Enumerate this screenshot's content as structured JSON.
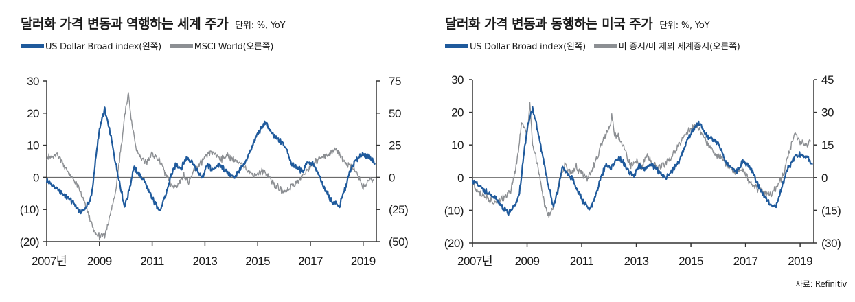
{
  "colors": {
    "usd": "#1f5a9c",
    "other": "#8c8f93",
    "axis": "#333333",
    "zero": "#555555"
  },
  "source": "자료: Refinitiv",
  "chart_data": [
    {
      "type": "line",
      "title": "달러화 가격 변동과 역행하는 세계 주가",
      "unit": "단위: %, YoY",
      "x_ticks": [
        "2007년",
        "2009",
        "2011",
        "2013",
        "2015",
        "2017",
        "2019"
      ],
      "xlim": [
        2007,
        2019.5
      ],
      "left_ylim": [
        -20,
        30
      ],
      "right_ylim": [
        -50,
        75
      ],
      "left_ticks": [
        "30",
        "20",
        "10",
        "0",
        "(10)",
        "(20)"
      ],
      "right_ticks": [
        "75",
        "50",
        "25",
        "0",
        "(25)",
        "(50)"
      ],
      "series": [
        {
          "name": "US Dollar Broad index(왼쪽)",
          "axis": "left",
          "color_key": "usd",
          "points": [
            [
              2007.0,
              -1
            ],
            [
              2007.3,
              -3
            ],
            [
              2007.6,
              -5
            ],
            [
              2007.9,
              -7
            ],
            [
              2008.1,
              -9
            ],
            [
              2008.3,
              -11
            ],
            [
              2008.5,
              -9
            ],
            [
              2008.7,
              -6
            ],
            [
              2008.85,
              5
            ],
            [
              2009.0,
              15
            ],
            [
              2009.2,
              21
            ],
            [
              2009.4,
              14
            ],
            [
              2009.6,
              5
            ],
            [
              2009.8,
              -3
            ],
            [
              2009.95,
              -9
            ],
            [
              2010.1,
              -5
            ],
            [
              2010.3,
              3
            ],
            [
              2010.5,
              1
            ],
            [
              2010.7,
              -1
            ],
            [
              2010.9,
              -5
            ],
            [
              2011.1,
              -8
            ],
            [
              2011.3,
              -10
            ],
            [
              2011.5,
              -6
            ],
            [
              2011.7,
              0
            ],
            [
              2011.9,
              4
            ],
            [
              2012.1,
              3
            ],
            [
              2012.3,
              6
            ],
            [
              2012.5,
              5
            ],
            [
              2012.7,
              2
            ],
            [
              2012.9,
              0
            ],
            [
              2013.1,
              4
            ],
            [
              2013.3,
              2
            ],
            [
              2013.5,
              4
            ],
            [
              2013.7,
              3
            ],
            [
              2013.9,
              1
            ],
            [
              2014.1,
              0
            ],
            [
              2014.3,
              2
            ],
            [
              2014.5,
              4
            ],
            [
              2014.7,
              8
            ],
            [
              2014.9,
              12
            ],
            [
              2015.1,
              15
            ],
            [
              2015.3,
              17
            ],
            [
              2015.5,
              14
            ],
            [
              2015.7,
              12
            ],
            [
              2015.9,
              11
            ],
            [
              2016.1,
              9
            ],
            [
              2016.3,
              4
            ],
            [
              2016.5,
              3
            ],
            [
              2016.7,
              2
            ],
            [
              2016.9,
              5
            ],
            [
              2017.1,
              4
            ],
            [
              2017.3,
              1
            ],
            [
              2017.5,
              -3
            ],
            [
              2017.7,
              -6
            ],
            [
              2017.9,
              -8
            ],
            [
              2018.1,
              -9
            ],
            [
              2018.3,
              -4
            ],
            [
              2018.5,
              2
            ],
            [
              2018.7,
              5
            ],
            [
              2018.9,
              7
            ],
            [
              2019.1,
              7
            ],
            [
              2019.3,
              6
            ],
            [
              2019.45,
              4
            ]
          ]
        },
        {
          "name": "MSCI World(오른쪽)",
          "axis": "right",
          "color_key": "other",
          "points": [
            [
              2007.0,
              16
            ],
            [
              2007.2,
              15
            ],
            [
              2007.4,
              18
            ],
            [
              2007.6,
              12
            ],
            [
              2007.8,
              4
            ],
            [
              2008.0,
              -2
            ],
            [
              2008.2,
              -8
            ],
            [
              2008.4,
              -18
            ],
            [
              2008.6,
              -30
            ],
            [
              2008.8,
              -42
            ],
            [
              2009.0,
              -46
            ],
            [
              2009.2,
              -45
            ],
            [
              2009.4,
              -30
            ],
            [
              2009.6,
              -12
            ],
            [
              2009.8,
              20
            ],
            [
              2010.0,
              55
            ],
            [
              2010.1,
              65
            ],
            [
              2010.2,
              45
            ],
            [
              2010.4,
              22
            ],
            [
              2010.6,
              14
            ],
            [
              2010.8,
              12
            ],
            [
              2011.0,
              18
            ],
            [
              2011.2,
              15
            ],
            [
              2011.4,
              8
            ],
            [
              2011.6,
              -2
            ],
            [
              2011.8,
              -8
            ],
            [
              2012.0,
              -5
            ],
            [
              2012.2,
              2
            ],
            [
              2012.4,
              -4
            ],
            [
              2012.6,
              6
            ],
            [
              2012.8,
              10
            ],
            [
              2013.0,
              15
            ],
            [
              2013.2,
              20
            ],
            [
              2013.4,
              18
            ],
            [
              2013.6,
              14
            ],
            [
              2013.8,
              17
            ],
            [
              2014.0,
              15
            ],
            [
              2014.2,
              12
            ],
            [
              2014.4,
              10
            ],
            [
              2014.6,
              6
            ],
            [
              2014.8,
              2
            ],
            [
              2015.0,
              3
            ],
            [
              2015.2,
              5
            ],
            [
              2015.4,
              2
            ],
            [
              2015.6,
              -5
            ],
            [
              2015.8,
              -8
            ],
            [
              2016.0,
              -12
            ],
            [
              2016.2,
              -8
            ],
            [
              2016.4,
              -5
            ],
            [
              2016.6,
              -2
            ],
            [
              2016.8,
              3
            ],
            [
              2017.0,
              8
            ],
            [
              2017.2,
              12
            ],
            [
              2017.4,
              16
            ],
            [
              2017.6,
              17
            ],
            [
              2017.8,
              19
            ],
            [
              2018.0,
              22
            ],
            [
              2018.2,
              15
            ],
            [
              2018.4,
              10
            ],
            [
              2018.6,
              8
            ],
            [
              2018.8,
              2
            ],
            [
              2019.0,
              -8
            ],
            [
              2019.2,
              -3
            ],
            [
              2019.4,
              -2
            ]
          ]
        }
      ]
    },
    {
      "type": "line",
      "title": "달러화 가격 변동과 동행하는 미국 주가",
      "unit": "단위: %, YoY",
      "x_ticks": [
        "2007년",
        "2009",
        "2011",
        "2013",
        "2015",
        "2017",
        "2019"
      ],
      "xlim": [
        2007,
        2019.5
      ],
      "left_ylim": [
        -20,
        30
      ],
      "right_ylim": [
        -30,
        45
      ],
      "left_ticks": [
        "30",
        "20",
        "10",
        "0",
        "(10)",
        "(20)"
      ],
      "right_ticks": [
        "45",
        "30",
        "15",
        "0",
        "(15)",
        "(30)"
      ],
      "series": [
        {
          "name": "US Dollar Broad index(왼쪽)",
          "axis": "left",
          "color_key": "usd",
          "points": [
            [
              2007.0,
              -1
            ],
            [
              2007.3,
              -3
            ],
            [
              2007.6,
              -5
            ],
            [
              2007.9,
              -7
            ],
            [
              2008.1,
              -9
            ],
            [
              2008.3,
              -11
            ],
            [
              2008.5,
              -9
            ],
            [
              2008.7,
              -6
            ],
            [
              2008.85,
              5
            ],
            [
              2009.0,
              15
            ],
            [
              2009.2,
              21
            ],
            [
              2009.4,
              14
            ],
            [
              2009.6,
              5
            ],
            [
              2009.8,
              -3
            ],
            [
              2009.95,
              -9
            ],
            [
              2010.1,
              -5
            ],
            [
              2010.3,
              3
            ],
            [
              2010.5,
              1
            ],
            [
              2010.7,
              -1
            ],
            [
              2010.9,
              -5
            ],
            [
              2011.1,
              -8
            ],
            [
              2011.3,
              -10
            ],
            [
              2011.5,
              -6
            ],
            [
              2011.7,
              0
            ],
            [
              2011.9,
              4
            ],
            [
              2012.1,
              3
            ],
            [
              2012.3,
              6
            ],
            [
              2012.5,
              5
            ],
            [
              2012.7,
              2
            ],
            [
              2012.9,
              0
            ],
            [
              2013.1,
              4
            ],
            [
              2013.3,
              2
            ],
            [
              2013.5,
              4
            ],
            [
              2013.7,
              3
            ],
            [
              2013.9,
              1
            ],
            [
              2014.1,
              0
            ],
            [
              2014.3,
              2
            ],
            [
              2014.5,
              4
            ],
            [
              2014.7,
              8
            ],
            [
              2014.9,
              12
            ],
            [
              2015.1,
              15
            ],
            [
              2015.3,
              17
            ],
            [
              2015.5,
              14
            ],
            [
              2015.7,
              12
            ],
            [
              2015.9,
              11
            ],
            [
              2016.1,
              9
            ],
            [
              2016.3,
              4
            ],
            [
              2016.5,
              3
            ],
            [
              2016.7,
              2
            ],
            [
              2016.9,
              5
            ],
            [
              2017.1,
              4
            ],
            [
              2017.3,
              1
            ],
            [
              2017.5,
              -3
            ],
            [
              2017.7,
              -6
            ],
            [
              2017.9,
              -8
            ],
            [
              2018.1,
              -9
            ],
            [
              2018.3,
              -4
            ],
            [
              2018.5,
              2
            ],
            [
              2018.7,
              5
            ],
            [
              2018.9,
              7
            ],
            [
              2019.1,
              7
            ],
            [
              2019.3,
              6
            ],
            [
              2019.45,
              4
            ]
          ]
        },
        {
          "name": "미 증시/미 제외 세계증시(오른쪽)",
          "axis": "right",
          "color_key": "other",
          "points": [
            [
              2007.0,
              -2
            ],
            [
              2007.2,
              -6
            ],
            [
              2007.4,
              -8
            ],
            [
              2007.6,
              -10
            ],
            [
              2007.8,
              -12
            ],
            [
              2008.0,
              -10
            ],
            [
              2008.2,
              -9
            ],
            [
              2008.4,
              -6
            ],
            [
              2008.6,
              5
            ],
            [
              2008.8,
              25
            ],
            [
              2009.0,
              20
            ],
            [
              2009.1,
              35
            ],
            [
              2009.2,
              15
            ],
            [
              2009.4,
              5
            ],
            [
              2009.6,
              -10
            ],
            [
              2009.8,
              -18
            ],
            [
              2010.0,
              -12
            ],
            [
              2010.2,
              0
            ],
            [
              2010.4,
              6
            ],
            [
              2010.6,
              2
            ],
            [
              2010.8,
              5
            ],
            [
              2011.0,
              2
            ],
            [
              2011.2,
              0
            ],
            [
              2011.4,
              4
            ],
            [
              2011.6,
              10
            ],
            [
              2011.8,
              18
            ],
            [
              2012.0,
              22
            ],
            [
              2012.1,
              28
            ],
            [
              2012.2,
              20
            ],
            [
              2012.4,
              18
            ],
            [
              2012.6,
              12
            ],
            [
              2012.8,
              5
            ],
            [
              2013.0,
              8
            ],
            [
              2013.2,
              5
            ],
            [
              2013.4,
              10
            ],
            [
              2013.6,
              6
            ],
            [
              2013.8,
              5
            ],
            [
              2014.0,
              6
            ],
            [
              2014.2,
              8
            ],
            [
              2014.4,
              12
            ],
            [
              2014.6,
              16
            ],
            [
              2014.8,
              20
            ],
            [
              2015.0,
              22
            ],
            [
              2015.2,
              24
            ],
            [
              2015.4,
              20
            ],
            [
              2015.6,
              16
            ],
            [
              2015.8,
              12
            ],
            [
              2016.0,
              10
            ],
            [
              2016.2,
              8
            ],
            [
              2016.4,
              5
            ],
            [
              2016.6,
              2
            ],
            [
              2016.8,
              4
            ],
            [
              2017.0,
              2
            ],
            [
              2017.2,
              -3
            ],
            [
              2017.4,
              -5
            ],
            [
              2017.6,
              -6
            ],
            [
              2017.8,
              -8
            ],
            [
              2018.0,
              -7
            ],
            [
              2018.2,
              -3
            ],
            [
              2018.4,
              2
            ],
            [
              2018.6,
              12
            ],
            [
              2018.8,
              20
            ],
            [
              2019.0,
              17
            ],
            [
              2019.2,
              15
            ],
            [
              2019.4,
              17
            ]
          ]
        }
      ]
    }
  ]
}
